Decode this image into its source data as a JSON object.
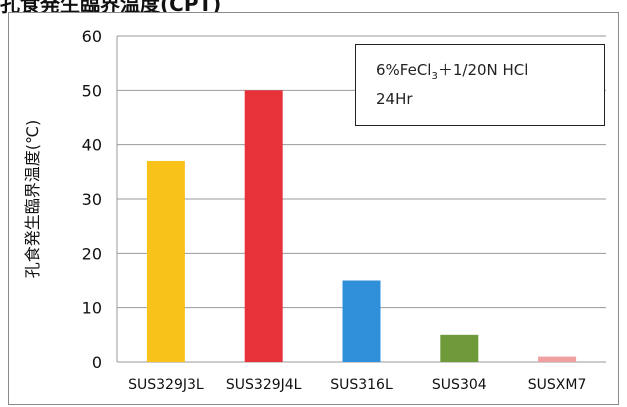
{
  "page_title": "孔食発生臨界温度(CPT)",
  "chart_data": {
    "type": "bar",
    "categories": [
      "SUS329J3L",
      "SUS329J4L",
      "SUS316L",
      "SUS304",
      "SUSXM7"
    ],
    "values": [
      37,
      50,
      15,
      5,
      1
    ],
    "colors": [
      "#f9c21a",
      "#e8323a",
      "#2f8fd8",
      "#6f9a3a",
      "#f0a0a0"
    ],
    "ylabel": "孔食発生臨界温度(℃)",
    "xlabel": "",
    "ylim": [
      0,
      60
    ],
    "yticks": [
      0,
      10,
      20,
      30,
      40,
      50,
      60
    ],
    "grid": true,
    "legend": "top-right",
    "annotation": {
      "line1_prefix": "6%FeCl",
      "line1_sub": "3",
      "line1_suffix": "＋1/20N HCl",
      "line2": "24Hr"
    }
  }
}
